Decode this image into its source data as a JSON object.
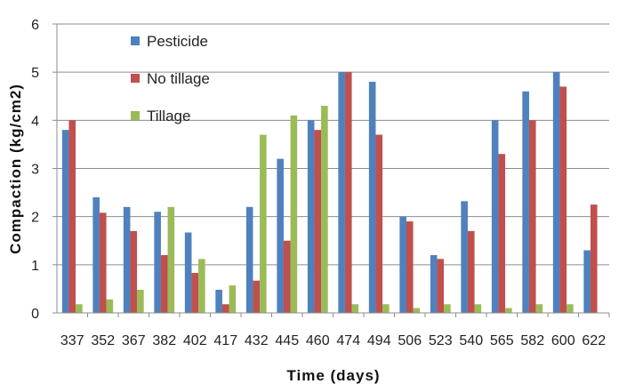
{
  "chart_data": {
    "type": "bar",
    "title": "",
    "xlabel": "Time (days)",
    "ylabel": "Compaction (kg/cm2)",
    "ylim": [
      0,
      6
    ],
    "yticks": [
      "0",
      "1",
      "2",
      "3",
      "4",
      "5",
      "6"
    ],
    "grid": true,
    "legend_position": "top-left",
    "categories": [
      "337",
      "352",
      "367",
      "382",
      "402",
      "417",
      "432",
      "445",
      "460",
      "474",
      "494",
      "506",
      "523",
      "540",
      "565",
      "582",
      "600",
      "622"
    ],
    "series": [
      {
        "name": "Pesticide",
        "color": "#4F81BD",
        "values": [
          3.8,
          2.4,
          2.2,
          2.1,
          1.67,
          0.48,
          2.2,
          3.2,
          4.0,
          5.0,
          4.8,
          2.0,
          1.2,
          2.32,
          4.0,
          4.6,
          5.0,
          1.3
        ]
      },
      {
        "name": "No tillage",
        "color": "#C0504D",
        "values": [
          4.0,
          2.08,
          1.7,
          1.2,
          0.83,
          0.18,
          0.67,
          1.5,
          3.8,
          5.0,
          3.7,
          1.9,
          1.12,
          1.7,
          3.3,
          4.0,
          4.7,
          2.25
        ]
      },
      {
        "name": "Tillage",
        "color": "#9BBB59",
        "values": [
          0.18,
          0.28,
          0.48,
          2.2,
          1.12,
          0.57,
          3.7,
          4.1,
          4.3,
          0.18,
          0.18,
          0.1,
          0.18,
          0.18,
          0.1,
          0.18,
          0.18,
          0
        ]
      }
    ]
  }
}
